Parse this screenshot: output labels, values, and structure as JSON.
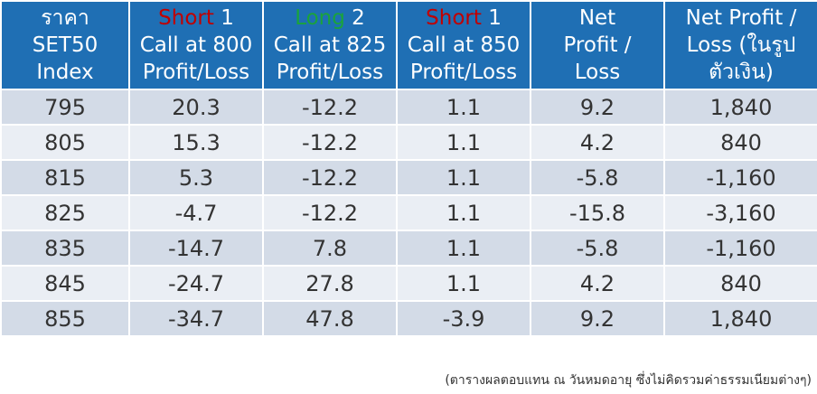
{
  "header": {
    "col1": {
      "line1": "ราคา",
      "line2": "SET50",
      "line3": "Index"
    },
    "col2": {
      "pos_word": "Short",
      "pos_num": " 1",
      "line2": "Call at 800",
      "line3": "Profit/Loss"
    },
    "col3": {
      "pos_word": "Long",
      "pos_num": " 2",
      "line2": "Call at 825",
      "line3": "Profit/Loss"
    },
    "col4": {
      "pos_word": "Short",
      "pos_num": " 1",
      "line2": "Call at 850",
      "line3": "Profit/Loss"
    },
    "col5": {
      "line1": "Net",
      "line2": "Profit /",
      "line3": "Loss"
    },
    "col6": {
      "line1": "Net Profit /",
      "line2": "Loss (ในรูป",
      "line3": "ตัวเงิน)"
    }
  },
  "rows": [
    {
      "index": "795",
      "short800": "20.3",
      "long825": "-12.2",
      "short850": "1.1",
      "net": "9.2",
      "net_baht": "1,840"
    },
    {
      "index": "805",
      "short800": "15.3",
      "long825": "-12.2",
      "short850": "1.1",
      "net": "4.2",
      "net_baht": "840"
    },
    {
      "index": "815",
      "short800": "5.3",
      "long825": "-12.2",
      "short850": "1.1",
      "net": "-5.8",
      "net_baht": "-1,160"
    },
    {
      "index": "825",
      "short800": "-4.7",
      "long825": "-12.2",
      "short850": "1.1",
      "net": "-15.8",
      "net_baht": "-3,160"
    },
    {
      "index": "835",
      "short800": "-14.7",
      "long825": "7.8",
      "short850": "1.1",
      "net": "-5.8",
      "net_baht": "-1,160"
    },
    {
      "index": "845",
      "short800": "-24.7",
      "long825": "27.8",
      "short850": "1.1",
      "net": "4.2",
      "net_baht": "840"
    },
    {
      "index": "855",
      "short800": "-34.7",
      "long825": "47.8",
      "short850": "-3.9",
      "net": "9.2",
      "net_baht": "1,840"
    }
  ],
  "colors": {
    "header_bg": "#1f6fb4",
    "short": "#c00000",
    "long": "#1aa33c",
    "profit": "#1aa33c",
    "loss": "#c00000"
  },
  "footnote": "(ตารางผลตอบแทน ณ วันหมดอายุ ซึ่งไม่คิดรวมค่าธรรมเนียมต่างๆ)"
}
